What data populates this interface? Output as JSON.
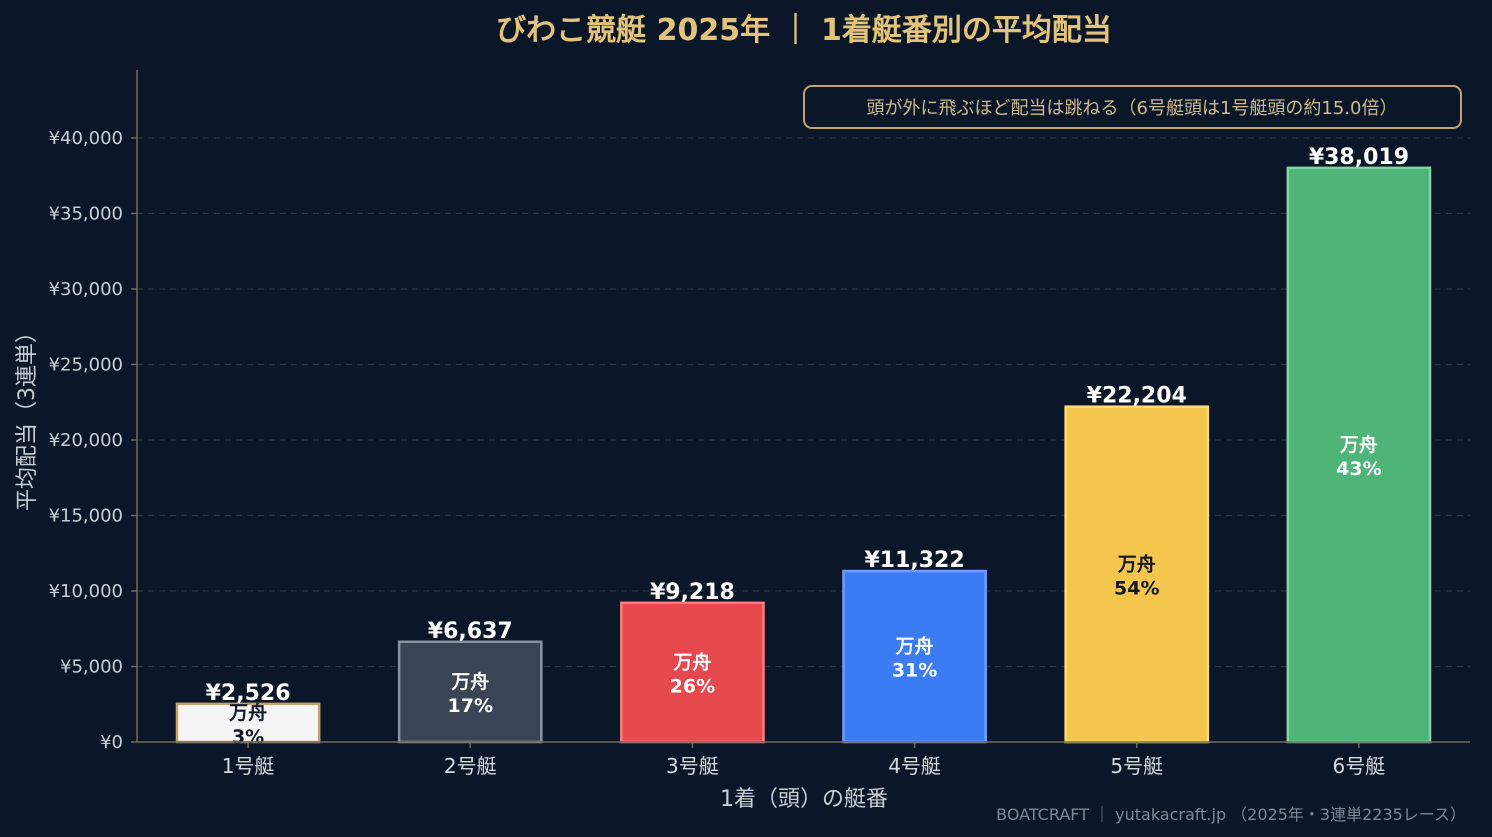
{
  "chart_data": {
    "type": "bar",
    "title": "びわこ競艇 2025年 ｜ 1着艇番別の平均配当",
    "xlabel": "1着（頭）の艇番",
    "ylabel": "平均配当（3連単）",
    "categories": [
      "1号艇",
      "2号艇",
      "3号艇",
      "4号艇",
      "5号艇",
      "6号艇"
    ],
    "values": [
      2526,
      6637,
      9218,
      11322,
      22204,
      38019
    ],
    "value_labels": [
      "¥2,526",
      "¥6,637",
      "¥9,218",
      "¥11,322",
      "¥22,204",
      "¥38,019"
    ],
    "manshu_label": "万舟",
    "manshu_pct": [
      "3%",
      "17%",
      "26%",
      "31%",
      "54%",
      "43%"
    ],
    "ylim": [
      0,
      44500
    ],
    "yticks": [
      0,
      5000,
      10000,
      15000,
      20000,
      25000,
      30000,
      35000,
      40000
    ],
    "ytick_labels": [
      "¥0",
      "¥5,000",
      "¥10,000",
      "¥15,000",
      "¥20,000",
      "¥25,000",
      "¥30,000",
      "¥35,000",
      "¥40,000"
    ],
    "grid": true,
    "annotation": "頭が外に飛ぶほど配当は跳ねる（6号艇頭は1号艇頭の約15.0倍）",
    "bar_colors": [
      "#f5f5f5",
      "#3a4454",
      "#e5484d",
      "#3b7cf5",
      "#f5c64e",
      "#4fb477"
    ],
    "bar_edge_colors": [
      "#c4a46a",
      "#8a939f",
      "#ff7d80",
      "#6f9ffb",
      "#ffd97e",
      "#7fd6a0"
    ],
    "inner_text_colors": [
      "#111827",
      "#ffffff",
      "#ffffff",
      "#ffffff",
      "#111827",
      "#ffffff"
    ]
  },
  "footer": "BOATCRAFT ｜ yutakacraft.jp （2025年・3連単2235レース）"
}
